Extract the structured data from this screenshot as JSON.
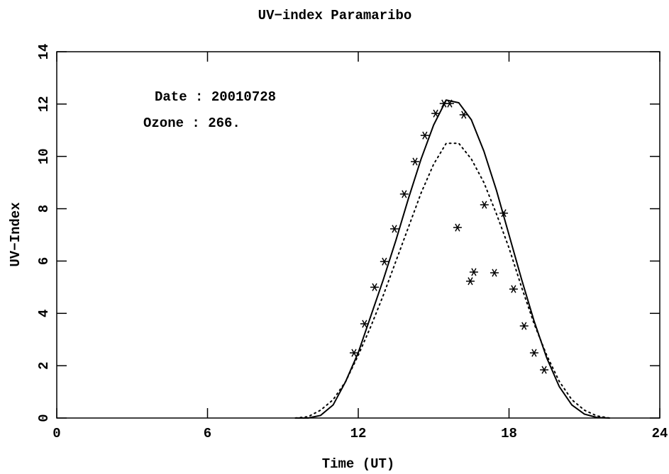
{
  "chart_data": {
    "type": "line",
    "title": "UV−index Paramaribo",
    "xlabel": "Time (UT)",
    "ylabel": "UV−Index",
    "annotations": [
      "Date : 20010728",
      "Ozone : 266."
    ],
    "xlim": [
      0,
      24
    ],
    "xticks": [
      0,
      6,
      12,
      18,
      24
    ],
    "ylim": [
      0,
      14
    ],
    "yticks": [
      0,
      2,
      4,
      6,
      8,
      10,
      12,
      14
    ],
    "series": [
      {
        "color": "#000000",
        "linestyle": "solid",
        "x": [
          9.5,
          10,
          10.5,
          11,
          11.5,
          12,
          12.5,
          13,
          13.5,
          14,
          14.5,
          15,
          15.5,
          16,
          16.5,
          17,
          17.5,
          18,
          18.5,
          19,
          19.5,
          20,
          20.5,
          21,
          21.5,
          22
        ],
        "values": [
          0,
          0,
          0.1,
          0.5,
          1.4,
          2.5,
          3.9,
          5.3,
          6.8,
          8.4,
          9.9,
          11.2,
          12.15,
          12.05,
          11.4,
          10.2,
          8.7,
          7.0,
          5.3,
          3.7,
          2.3,
          1.2,
          0.5,
          0.15,
          0.02,
          0
        ]
      },
      {
        "color": "#000000",
        "linestyle": "dotted",
        "x": [
          9.5,
          10,
          10.5,
          11,
          11.5,
          12,
          12.5,
          13,
          13.5,
          14,
          14.5,
          15,
          15.5,
          16,
          16.5,
          17,
          17.5,
          18,
          18.5,
          19,
          19.5,
          20,
          20.5,
          21,
          21.5,
          22
        ],
        "values": [
          0,
          0.05,
          0.3,
          0.7,
          1.4,
          2.4,
          3.5,
          4.7,
          6.0,
          7.3,
          8.6,
          9.7,
          10.5,
          10.5,
          9.9,
          9.0,
          7.8,
          6.5,
          5.0,
          3.6,
          2.4,
          1.4,
          0.7,
          0.3,
          0.08,
          0
        ]
      },
      {
        "color": "#000000",
        "linestyle": "none",
        "marker": "asterisk",
        "x": [
          11.83,
          12.25,
          12.65,
          13.04,
          13.44,
          13.83,
          14.26,
          14.65,
          15.08,
          15.41,
          15.64,
          15.95,
          16.2,
          16.46,
          16.6,
          17.02,
          17.42,
          17.79,
          18.18,
          18.6,
          19.0,
          19.4
        ],
        "values": [
          2.49,
          3.6,
          5.0,
          5.98,
          7.23,
          8.56,
          9.8,
          10.8,
          11.64,
          12.02,
          12.02,
          7.28,
          11.59,
          5.23,
          5.58,
          8.15,
          5.55,
          7.83,
          4.93,
          3.52,
          2.49,
          1.84
        ]
      }
    ]
  }
}
